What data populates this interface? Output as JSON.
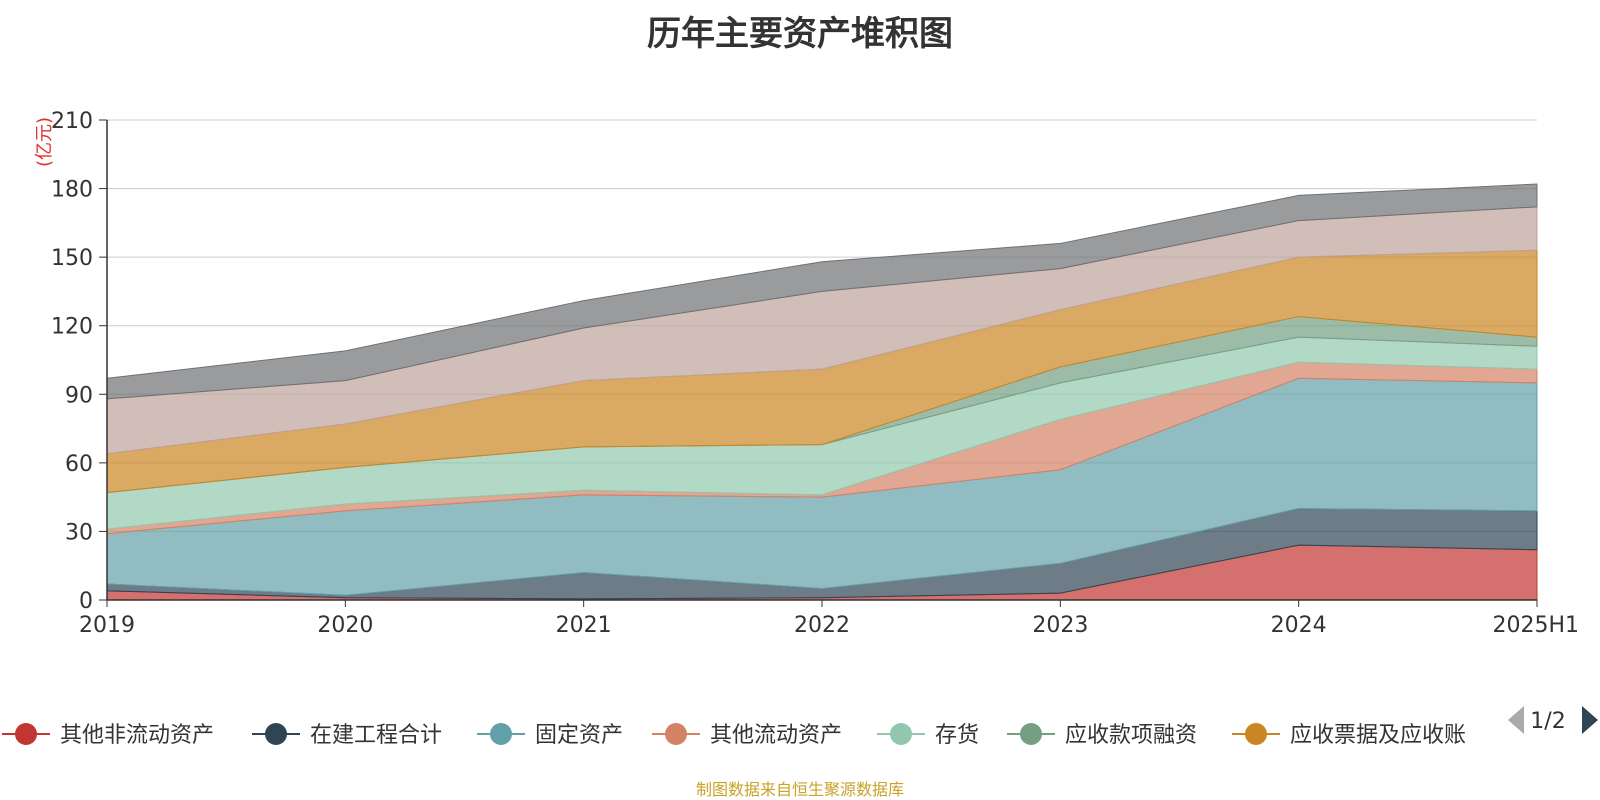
{
  "chart_data": {
    "type": "area",
    "stacked": true,
    "title": "历年主要资产堆积图",
    "ylabel": "(亿元)",
    "ylim": [
      0,
      210
    ],
    "yticks": [
      0,
      30,
      60,
      90,
      120,
      150,
      180,
      210
    ],
    "categories": [
      "2019",
      "2020",
      "2021",
      "2022",
      "2023",
      "2024",
      "2025H1"
    ],
    "grid": true,
    "series": [
      {
        "name": "其他非流动资产",
        "color": "#c23531",
        "values": [
          4,
          1,
          0.5,
          1,
          3,
          24,
          22
        ]
      },
      {
        "name": "在建工程合计",
        "color": "#2f4554",
        "values": [
          3,
          1,
          11.5,
          4,
          13,
          16,
          17
        ]
      },
      {
        "name": "固定资产",
        "color": "#61a0a8",
        "values": [
          22,
          37,
          34,
          40,
          41,
          57,
          56
        ]
      },
      {
        "name": "其他流动资产",
        "color": "#d48265",
        "values": [
          2,
          3,
          2,
          1,
          22,
          7,
          6
        ]
      },
      {
        "name": "存货",
        "color": "#91c7ae",
        "values": [
          16,
          16,
          19,
          22,
          16,
          11,
          10
        ]
      },
      {
        "name": "应收款项融资",
        "color": "#749f83",
        "values": [
          0,
          0,
          0,
          0,
          7,
          9,
          4
        ]
      },
      {
        "name": "应收票据及应收账",
        "color": "#ca8622",
        "values": [
          17,
          19,
          29,
          33,
          25,
          26,
          38
        ]
      },
      {
        "name": "",
        "color": "#bda29a",
        "values": [
          24,
          19,
          23,
          34,
          18,
          16,
          19
        ]
      },
      {
        "name": "",
        "color": "#6e7074",
        "values": [
          9,
          13,
          12,
          13,
          11,
          11,
          10
        ]
      }
    ]
  },
  "legend": {
    "items": [
      {
        "label": "其他非流动资产",
        "color": "#c23531"
      },
      {
        "label": "在建工程合计",
        "color": "#2f4554"
      },
      {
        "label": "固定资产",
        "color": "#61a0a8"
      },
      {
        "label": "其他流动资产",
        "color": "#d48265"
      },
      {
        "label": "存货",
        "color": "#91c7ae"
      },
      {
        "label": "应收款项融资",
        "color": "#749f83"
      },
      {
        "label": "应收票据及应收账",
        "color": "#ca8622"
      }
    ],
    "page_text": "1/2",
    "prev_icon": "triangle-left-icon",
    "next_icon": "triangle-right-icon"
  },
  "source": "制图数据来自恒生聚源数据库"
}
